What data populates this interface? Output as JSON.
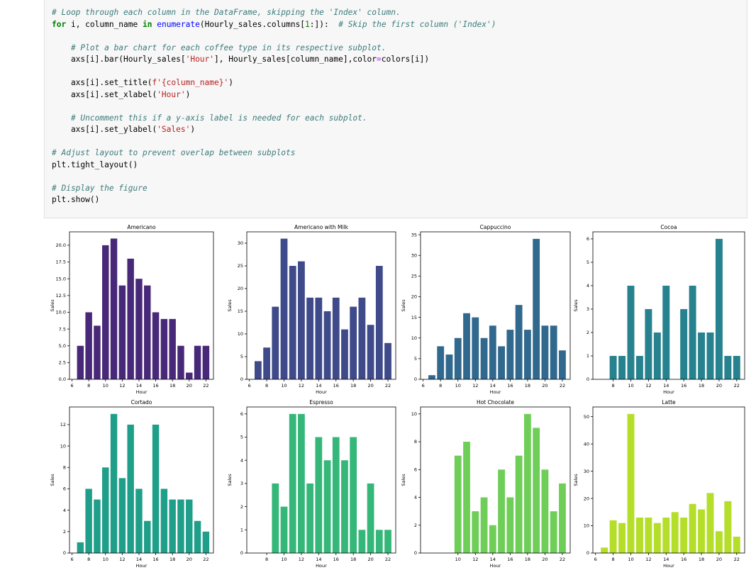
{
  "code_lines": [
    [
      {
        "t": "# Loop through each column in the DataFrame, skipping the 'Index' column.",
        "c": "cm"
      }
    ],
    [
      {
        "t": "for",
        "c": "kw"
      },
      {
        "t": " i, column_name "
      },
      {
        "t": "in",
        "c": "kw"
      },
      {
        "t": " "
      },
      {
        "t": "enumerate",
        "c": "fn"
      },
      {
        "t": "(Hourly_sales.columns["
      },
      {
        "t": "1",
        "c": "nu"
      },
      {
        "t": ":]):  "
      },
      {
        "t": "# Skip the first column ('Index')",
        "c": "cm"
      }
    ],
    [
      {
        "t": ""
      }
    ],
    [
      {
        "t": "    "
      },
      {
        "t": "# Plot a bar chart for each coffee type in its respective subplot.",
        "c": "cm"
      }
    ],
    [
      {
        "t": "    axs[i].bar(Hourly_sales["
      },
      {
        "t": "'Hour'",
        "c": "st"
      },
      {
        "t": "], Hourly_sales[column_name],color"
      },
      {
        "t": "=",
        "c": "op"
      },
      {
        "t": "colors[i])"
      }
    ],
    [
      {
        "t": ""
      }
    ],
    [
      {
        "t": "    axs[i].set_title("
      },
      {
        "t": "f'{column_name}'",
        "c": "st"
      },
      {
        "t": ")"
      }
    ],
    [
      {
        "t": "    axs[i].set_xlabel("
      },
      {
        "t": "'Hour'",
        "c": "st"
      },
      {
        "t": ")"
      }
    ],
    [
      {
        "t": ""
      }
    ],
    [
      {
        "t": "    "
      },
      {
        "t": "# Uncomment this if a y-axis label is needed for each subplot.",
        "c": "cm"
      }
    ],
    [
      {
        "t": "    axs[i].set_ylabel("
      },
      {
        "t": "'Sales'",
        "c": "st"
      },
      {
        "t": ")"
      }
    ],
    [
      {
        "t": ""
      }
    ],
    [
      {
        "t": "# Adjust layout to prevent overlap between subplots",
        "c": "cm"
      }
    ],
    [
      {
        "t": "plt.tight_layout()"
      }
    ],
    [
      {
        "t": ""
      }
    ],
    [
      {
        "t": "# Display the figure",
        "c": "cm"
      }
    ],
    [
      {
        "t": "plt.show()"
      }
    ]
  ],
  "chart_data": [
    {
      "type": "bar",
      "title": "Americano",
      "xlabel": "Hour",
      "ylabel": "Sales",
      "color": "#482878",
      "x": [
        7,
        8,
        9,
        10,
        11,
        12,
        13,
        14,
        15,
        16,
        17,
        18,
        19,
        20,
        21,
        22
      ],
      "values": [
        5,
        10,
        8,
        20,
        21,
        14,
        18,
        15,
        14,
        10,
        9,
        9,
        5,
        1,
        5,
        5
      ],
      "xticks": [
        6,
        8,
        10,
        12,
        14,
        16,
        18,
        20,
        22
      ],
      "yticks": [
        0.0,
        2.5,
        5.0,
        7.5,
        10.0,
        12.5,
        15.0,
        17.5,
        20.0
      ],
      "ytick_labels": [
        "0.0",
        "2.5",
        "5.0",
        "7.5",
        "10.0",
        "12.5",
        "15.0",
        "17.5",
        "20.0"
      ],
      "ylim": [
        0,
        22
      ]
    },
    {
      "type": "bar",
      "title": "Americano with Milk",
      "xlabel": "Hour",
      "ylabel": "Sales",
      "color": "#3e4a89",
      "x": [
        7,
        8,
        9,
        10,
        11,
        12,
        13,
        14,
        15,
        16,
        17,
        18,
        19,
        20,
        21,
        22
      ],
      "values": [
        4,
        7,
        16,
        31,
        25,
        26,
        18,
        18,
        15,
        18,
        11,
        16,
        18,
        12,
        25,
        8
      ],
      "xticks": [
        6,
        8,
        10,
        12,
        14,
        16,
        18,
        20,
        22
      ],
      "yticks": [
        0,
        5,
        10,
        15,
        20,
        25,
        30
      ],
      "ytick_labels": [
        "0",
        "5",
        "10",
        "15",
        "20",
        "25",
        "30"
      ],
      "ylim": [
        0,
        32.5
      ]
    },
    {
      "type": "bar",
      "title": "Cappuccino",
      "xlabel": "Hour",
      "ylabel": "Sales",
      "color": "#31688e",
      "x": [
        7,
        8,
        9,
        10,
        11,
        12,
        13,
        14,
        15,
        16,
        17,
        18,
        19,
        20,
        21,
        22
      ],
      "values": [
        1,
        8,
        6,
        10,
        16,
        15,
        10,
        13,
        8,
        12,
        18,
        12,
        34,
        13,
        13,
        7
      ],
      "xticks": [
        6,
        8,
        10,
        12,
        14,
        16,
        18,
        20,
        22
      ],
      "yticks": [
        0,
        5,
        10,
        15,
        20,
        25,
        30,
        35
      ],
      "ytick_labels": [
        "0",
        "5",
        "10",
        "15",
        "20",
        "25",
        "30",
        "35"
      ],
      "ylim": [
        0,
        35.7
      ]
    },
    {
      "type": "bar",
      "title": "Cocoa",
      "xlabel": "Hour",
      "ylabel": "Sales",
      "color": "#26828e",
      "x": [
        8,
        9,
        10,
        11,
        12,
        13,
        14,
        16,
        17,
        18,
        19,
        20,
        21,
        22
      ],
      "values": [
        1,
        1,
        4,
        1,
        3,
        2,
        4,
        3,
        4,
        2,
        2,
        6,
        1,
        1
      ],
      "xticks": [
        8,
        10,
        12,
        14,
        16,
        18,
        20,
        22
      ],
      "yticks": [
        0,
        1,
        2,
        3,
        4,
        5,
        6
      ],
      "ytick_labels": [
        "0",
        "1",
        "2",
        "3",
        "4",
        "5",
        "6"
      ],
      "ylim": [
        0,
        6.3
      ]
    },
    {
      "type": "bar",
      "title": "Cortado",
      "xlabel": "Hour",
      "ylabel": "Sales",
      "color": "#1f9e89",
      "x": [
        7,
        8,
        9,
        10,
        11,
        12,
        13,
        14,
        15,
        16,
        17,
        18,
        19,
        20,
        21,
        22
      ],
      "values": [
        1,
        6,
        5,
        8,
        13,
        7,
        12,
        6,
        3,
        12,
        6,
        5,
        5,
        5,
        3,
        2
      ],
      "xticks": [
        6,
        8,
        10,
        12,
        14,
        16,
        18,
        20,
        22
      ],
      "yticks": [
        0,
        2,
        4,
        6,
        8,
        10,
        12
      ],
      "ytick_labels": [
        "0",
        "2",
        "4",
        "6",
        "8",
        "10",
        "12"
      ],
      "ylim": [
        0,
        13.65
      ]
    },
    {
      "type": "bar",
      "title": "Espresso",
      "xlabel": "Hour",
      "ylabel": "Sales",
      "color": "#35b779",
      "x": [
        9,
        10,
        11,
        12,
        13,
        14,
        15,
        16,
        17,
        18,
        19,
        20,
        21,
        22
      ],
      "values": [
        3,
        2,
        6,
        6,
        3,
        5,
        4,
        5,
        4,
        5,
        1,
        3,
        1,
        1
      ],
      "xticks": [
        8,
        10,
        12,
        14,
        16,
        18,
        20,
        22
      ],
      "yticks": [
        0,
        1,
        2,
        3,
        4,
        5,
        6
      ],
      "ytick_labels": [
        "0",
        "1",
        "2",
        "3",
        "4",
        "5",
        "6"
      ],
      "ylim": [
        0,
        6.3
      ]
    },
    {
      "type": "bar",
      "title": "Hot Chocolate",
      "xlabel": "Hour",
      "ylabel": "Sales",
      "color": "#6ece58",
      "x": [
        10,
        11,
        12,
        13,
        14,
        15,
        16,
        17,
        18,
        19,
        20,
        21,
        22
      ],
      "values": [
        7,
        8,
        3,
        4,
        2,
        6,
        4,
        7,
        10,
        9,
        6,
        3,
        5
      ],
      "xticks": [
        10,
        12,
        14,
        16,
        18,
        20,
        22
      ],
      "yticks": [
        0,
        2,
        4,
        6,
        8,
        10
      ],
      "ytick_labels": [
        "0",
        "2",
        "4",
        "6",
        "8",
        "10"
      ],
      "ylim": [
        0,
        10.5
      ]
    },
    {
      "type": "bar",
      "title": "Latte",
      "xlabel": "Hour",
      "ylabel": "Sales",
      "color": "#b5de2b",
      "x": [
        7,
        8,
        9,
        10,
        11,
        12,
        13,
        14,
        15,
        16,
        17,
        18,
        19,
        20,
        21,
        22
      ],
      "values": [
        2,
        12,
        11,
        51,
        13,
        13,
        11,
        13,
        15,
        13,
        18,
        16,
        22,
        8,
        19,
        6
      ],
      "xticks": [
        6,
        8,
        10,
        12,
        14,
        16,
        18,
        20,
        22
      ],
      "yticks": [
        0,
        10,
        20,
        30,
        40,
        50
      ],
      "ytick_labels": [
        "0",
        "10",
        "20",
        "30",
        "40",
        "50"
      ],
      "ylim": [
        0,
        53.55
      ]
    }
  ]
}
